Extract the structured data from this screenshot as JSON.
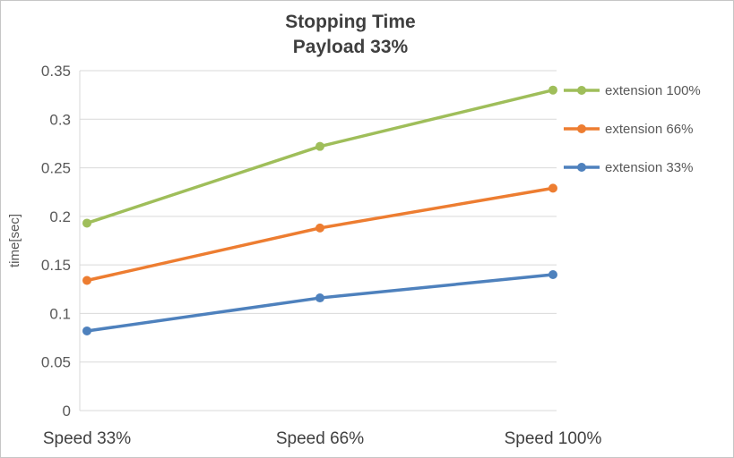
{
  "chart_data": {
    "type": "line",
    "title": "Stopping Time",
    "subtitle": "Payload 33%",
    "ylabel": "time[sec]",
    "xlabel": "",
    "categories": [
      "Speed 33%",
      "Speed 66%",
      "Speed 100%"
    ],
    "series": [
      {
        "name": "extension 100%",
        "color": "#9FBE5A",
        "values": [
          0.193,
          0.272,
          0.33
        ]
      },
      {
        "name": "extension 66%",
        "color": "#ED7D31",
        "values": [
          0.134,
          0.188,
          0.229
        ]
      },
      {
        "name": "extension 33%",
        "color": "#4E81BD",
        "values": [
          0.082,
          0.116,
          0.14
        ]
      }
    ],
    "ylim": [
      0,
      0.35
    ],
    "ytick_step": 0.05,
    "ytick_labels": [
      "0",
      "0.05",
      "0.1",
      "0.15",
      "0.2",
      "0.25",
      "0.3",
      "0.35"
    ],
    "grid": "horizontal",
    "gridline_color": "#d9d9d9",
    "legend_position": "right",
    "marker": "circle"
  }
}
